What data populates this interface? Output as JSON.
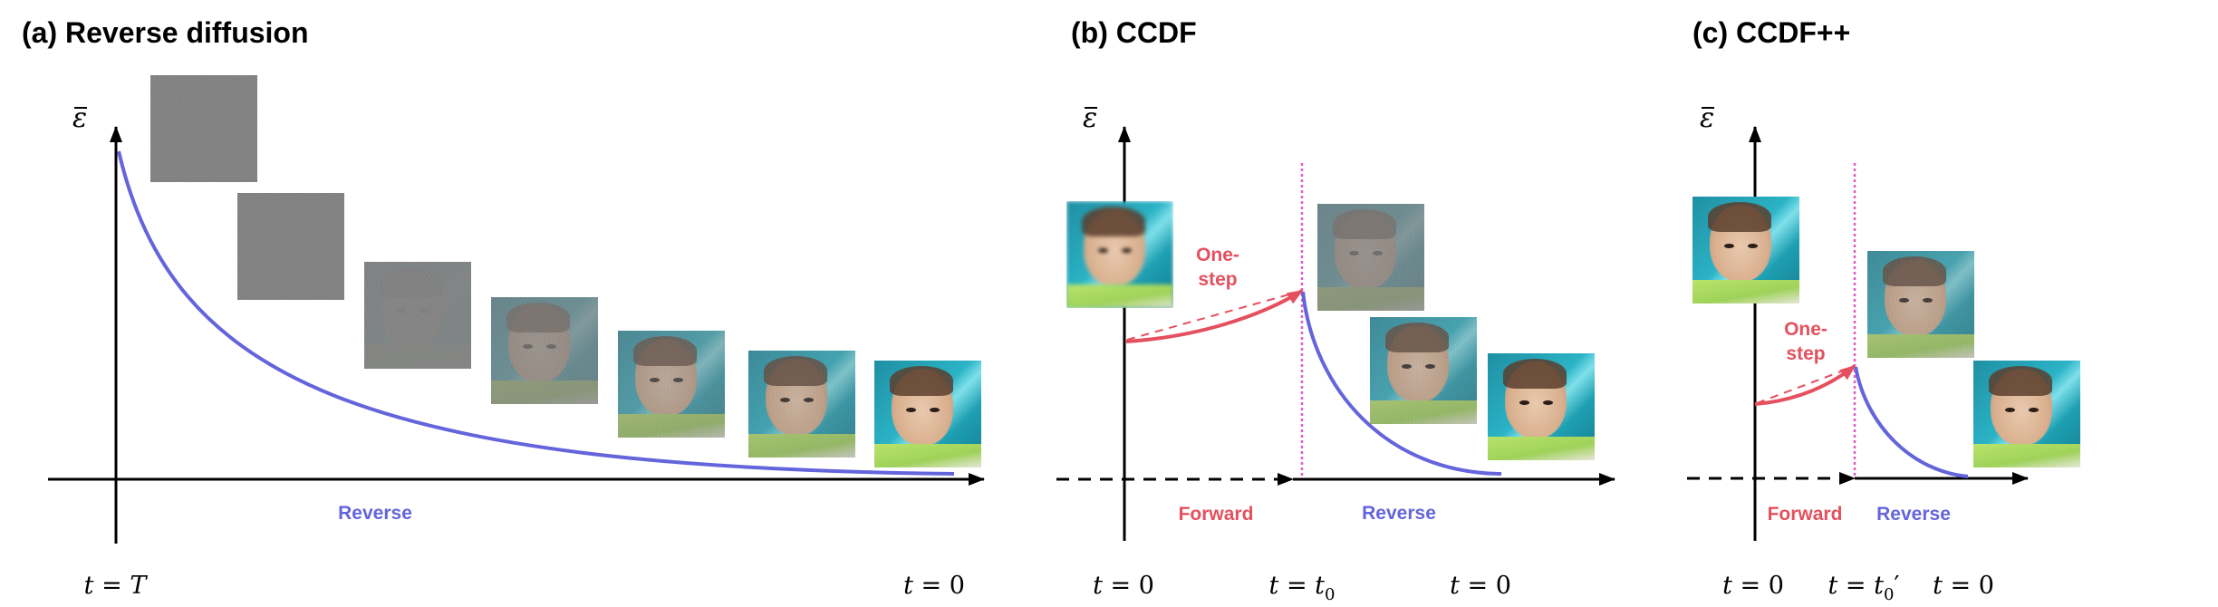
{
  "figure": {
    "panels": [
      {
        "id": "a",
        "title": "(a) Reverse diffusion",
        "y_axis_label": "ε",
        "phase_labels": {
          "reverse": "Reverse"
        },
        "time_labels": [
          {
            "t": "t",
            "eq": " = ",
            "val": "T",
            "sub": "",
            "prime": ""
          },
          {
            "t": "t",
            "eq": " = ",
            "val": "0",
            "sub": "",
            "prime": ""
          }
        ],
        "images": [
          {
            "description": "pure noise",
            "noise_level": 1.0
          },
          {
            "description": "pure noise",
            "noise_level": 0.97
          },
          {
            "description": "near pure noise",
            "noise_level": 0.92
          },
          {
            "description": "faint face in noise",
            "noise_level": 0.7
          },
          {
            "description": "noisy face",
            "noise_level": 0.4
          },
          {
            "description": "lightly noisy face",
            "noise_level": 0.25
          },
          {
            "description": "clean face",
            "noise_level": 0.0
          }
        ]
      },
      {
        "id": "b",
        "title": "(b) CCDF",
        "y_axis_label": "ε",
        "annotation": {
          "line1": "One-",
          "line2": "step"
        },
        "phase_labels": {
          "forward": "Forward",
          "reverse": "Reverse"
        },
        "time_labels": [
          {
            "t": "t",
            "eq": " = ",
            "val": "0",
            "sub": "",
            "prime": ""
          },
          {
            "t": "t",
            "eq": " = ",
            "val": "t",
            "sub": "0",
            "prime": ""
          },
          {
            "t": "t",
            "eq": " = ",
            "val": "0",
            "sub": "",
            "prime": ""
          }
        ],
        "images": [
          {
            "description": "blurry input face",
            "noise_level": 0.0
          },
          {
            "description": "noisy face at t0",
            "noise_level": 0.72
          },
          {
            "description": "lightly noisy face",
            "noise_level": 0.28
          },
          {
            "description": "clean face",
            "noise_level": 0.0
          }
        ]
      },
      {
        "id": "c",
        "title": "(c) CCDF++",
        "y_axis_label": "ε",
        "annotation": {
          "line1": "One-",
          "line2": "step"
        },
        "phase_labels": {
          "forward": "Forward",
          "reverse": "Reverse"
        },
        "time_labels": [
          {
            "t": "t",
            "eq": " = ",
            "val": "0",
            "sub": "",
            "prime": ""
          },
          {
            "t": "t",
            "eq": " = ",
            "val": "t",
            "sub": "0",
            "prime": "′"
          },
          {
            "t": "t",
            "eq": " = ",
            "val": "0",
            "sub": "",
            "prime": ""
          }
        ],
        "images": [
          {
            "description": "input face",
            "noise_level": 0.0
          },
          {
            "description": "lightly noisy face at t0'",
            "noise_level": 0.28
          },
          {
            "description": "clean face",
            "noise_level": 0.0
          }
        ]
      }
    ],
    "colors": {
      "forward": "#e5505e",
      "reverse": "#6464dc",
      "t0_marker": "#dd5fc4",
      "axis": "#000000"
    }
  }
}
